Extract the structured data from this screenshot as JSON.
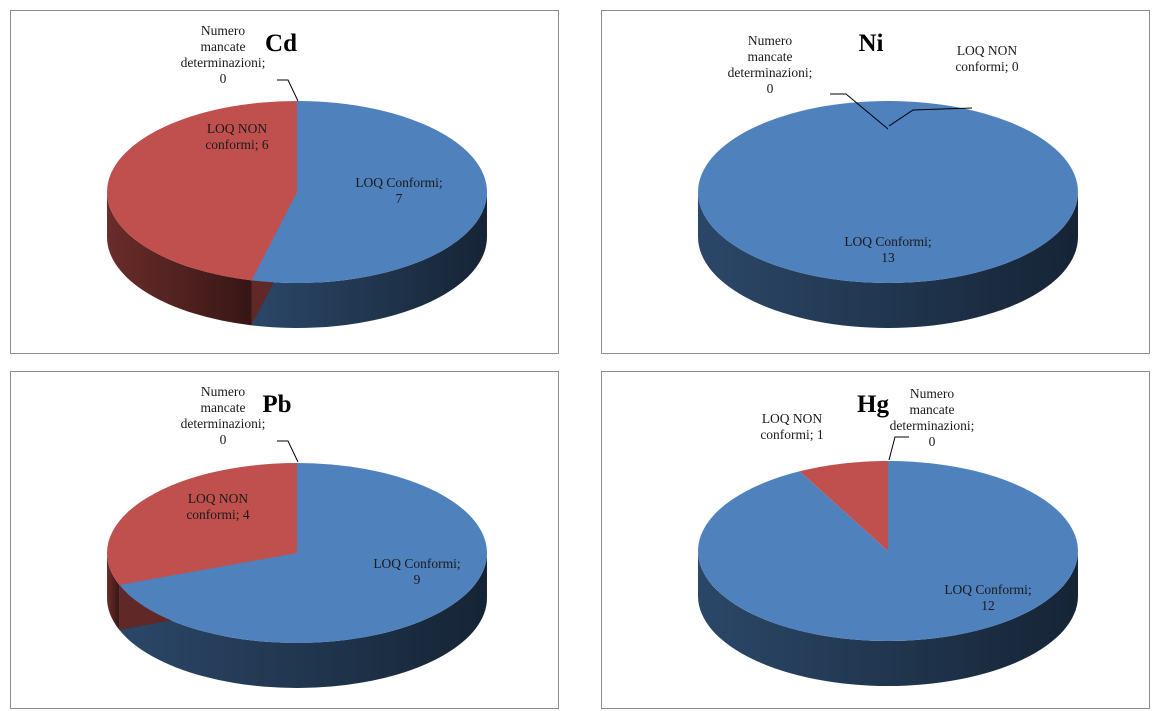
{
  "chart_data": [
    {
      "type": "pie",
      "title": "Cd",
      "categories": [
        "LOQ Conformi",
        "LOQ NON conformi",
        "Numero mancate determinazioni"
      ],
      "values": [
        7,
        6,
        0
      ],
      "labels": [
        "LOQ Conformi;\n7",
        "LOQ NON\nconformi; 6",
        "Numero\nmancate\ndeterminazioni;\n0"
      ],
      "colors": [
        "#4f81bd",
        "#c0504d",
        "#9bbb59"
      ]
    },
    {
      "type": "pie",
      "title": "Ni",
      "categories": [
        "LOQ Conformi",
        "LOQ NON conformi",
        "Numero mancate determinazioni"
      ],
      "values": [
        13,
        0,
        0
      ],
      "labels": [
        "LOQ Conformi;\n13",
        "LOQ NON\nconformi; 0",
        "Numero\nmancate\ndeterminazioni;\n0"
      ],
      "colors": [
        "#4f81bd",
        "#c0504d",
        "#9bbb59"
      ]
    },
    {
      "type": "pie",
      "title": "Pb",
      "categories": [
        "LOQ Conformi",
        "LOQ NON conformi",
        "Numero mancate determinazioni"
      ],
      "values": [
        9,
        4,
        0
      ],
      "labels": [
        "LOQ Conformi;\n9",
        "LOQ NON\nconformi; 4",
        "Numero\nmancate\ndeterminazioni;\n0"
      ],
      "colors": [
        "#4f81bd",
        "#c0504d",
        "#9bbb59"
      ]
    },
    {
      "type": "pie",
      "title": "Hg",
      "categories": [
        "LOQ Conformi",
        "LOQ NON conformi",
        "Numero mancate determinazioni"
      ],
      "values": [
        12,
        1,
        0
      ],
      "labels": [
        "LOQ Conformi;\n12",
        "LOQ NON\nconformi; 1",
        "Numero\nmancate\ndeterminazioni;\n0"
      ],
      "colors": [
        "#4f81bd",
        "#c0504d",
        "#9bbb59"
      ]
    }
  ]
}
